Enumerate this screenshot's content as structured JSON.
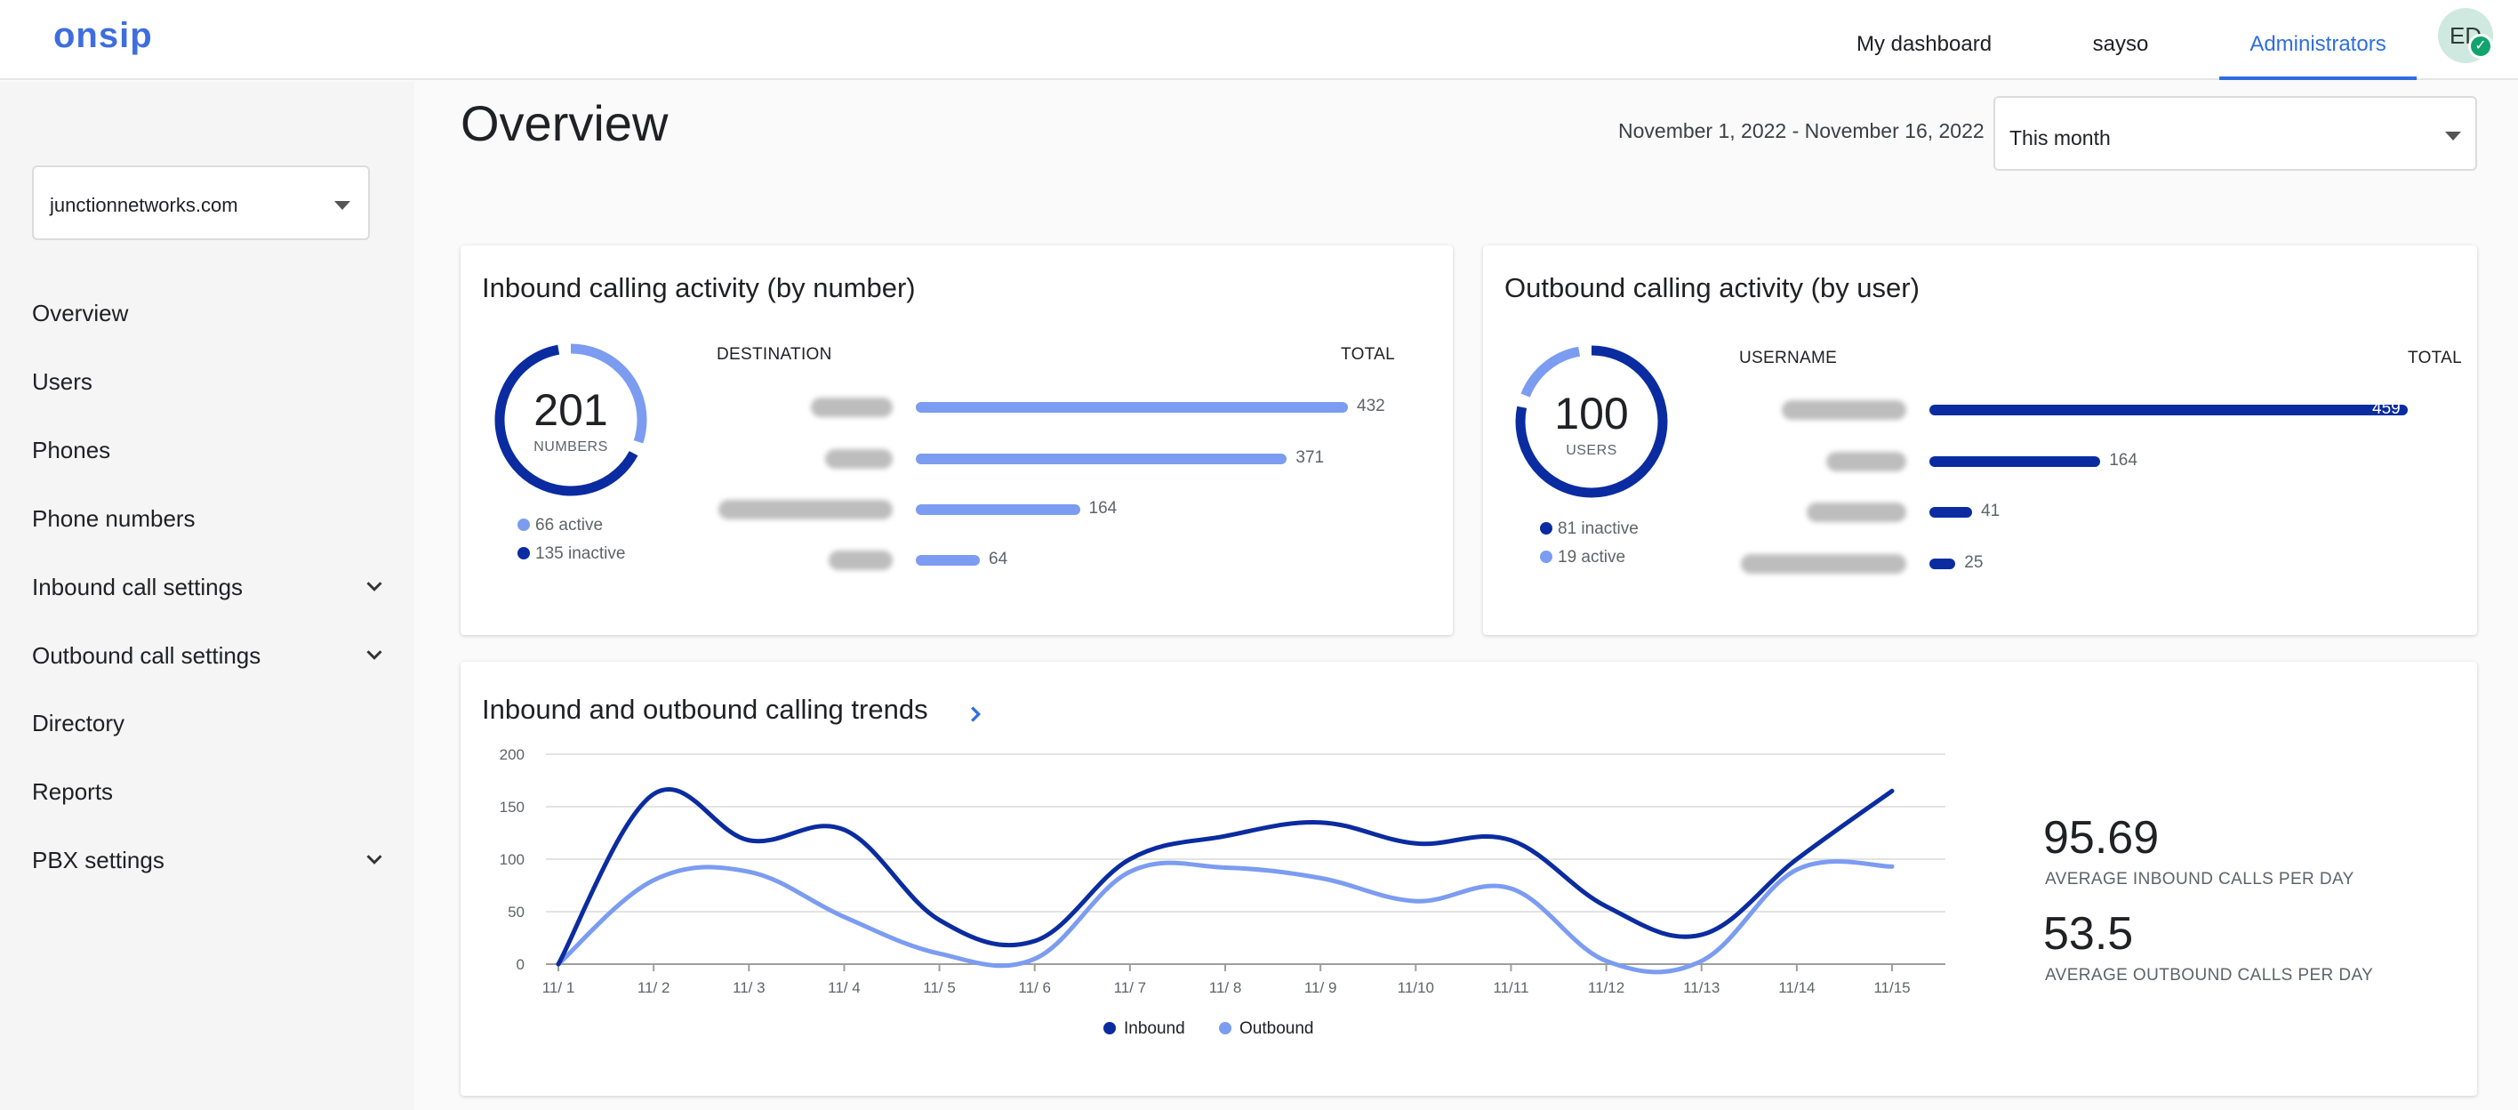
{
  "header": {
    "logo": "onsip",
    "tabs": [
      {
        "label": "My dashboard"
      },
      {
        "label": "sayso"
      },
      {
        "label": "Administrators"
      }
    ],
    "avatar_initials": "ED"
  },
  "sidebar": {
    "org_select_value": "junctionnetworks.com",
    "items": [
      {
        "label": "Overview"
      },
      {
        "label": "Users"
      },
      {
        "label": "Phones"
      },
      {
        "label": "Phone numbers"
      },
      {
        "label": "Inbound call settings"
      },
      {
        "label": "Outbound call settings"
      },
      {
        "label": "Directory"
      },
      {
        "label": "Reports"
      },
      {
        "label": "PBX settings"
      }
    ]
  },
  "main": {
    "title": "Overview",
    "date_range": "November 1, 2022 - November 16, 2022",
    "period_select_value": "This month",
    "inbound_card": {
      "title": "Inbound calling activity (by number)",
      "donut_value": "201",
      "donut_label": "NUMBERS",
      "active_fraction": 0.328,
      "legend": [
        "66 active",
        "135 inactive"
      ],
      "col_left": "DESTINATION",
      "col_right": "TOTAL",
      "rows": [
        {
          "value": 432
        },
        {
          "value": 371
        },
        {
          "value": 164
        },
        {
          "value": 64
        }
      ]
    },
    "outbound_card": {
      "title": "Outbound calling activity (by user)",
      "donut_value": "100",
      "donut_label": "USERS",
      "inactive_fraction": 0.81,
      "legend": [
        "81 inactive",
        "19 active"
      ],
      "col_left": "USERNAME",
      "col_right": "TOTAL",
      "rows": [
        {
          "value": 459
        },
        {
          "value": 164
        },
        {
          "value": 41
        },
        {
          "value": 25
        }
      ]
    },
    "trends_card": {
      "title": "Inbound and outbound calling trends",
      "stat_inbound_value": "95.69",
      "stat_inbound_label": "AVERAGE INBOUND CALLS PER DAY",
      "stat_outbound_value": "53.5",
      "stat_outbound_label": "AVERAGE OUTBOUND CALLS PER DAY"
    }
  },
  "colors": {
    "accent": "#2f6ee0",
    "dark_series": "#0b2ca0",
    "light_series": "#7b9cf0"
  },
  "chart_data": {
    "type": "line",
    "x": [
      "11/ 1",
      "11/ 2",
      "11/ 3",
      "11/ 4",
      "11/ 5",
      "11/ 6",
      "11/ 7",
      "11/ 8",
      "11/ 9",
      "11/10",
      "11/11",
      "11/12",
      "11/13",
      "11/14",
      "11/15"
    ],
    "series": [
      {
        "name": "Inbound",
        "values": [
          0,
          162,
          118,
          128,
          42,
          22,
          100,
          122,
          135,
          115,
          118,
          55,
          28,
          100,
          165
        ],
        "color": "#0b2ca0"
      },
      {
        "name": "Outbound",
        "values": [
          0,
          80,
          88,
          45,
          10,
          5,
          88,
          92,
          82,
          60,
          72,
          3,
          3,
          90,
          93
        ],
        "color": "#7b9cf0"
      }
    ],
    "ylim": [
      0,
      200
    ],
    "yticks": [
      0,
      50,
      100,
      150,
      200
    ],
    "grid": true,
    "legend": "bottom"
  }
}
